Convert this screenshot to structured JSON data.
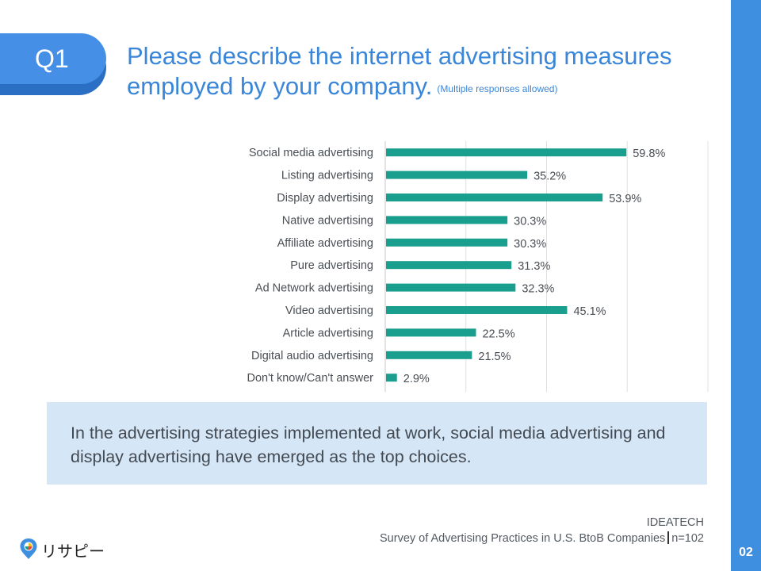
{
  "header": {
    "badge": "Q1",
    "title": "Please describe the internet advertising measures employed by your company.",
    "title_note": "(Multiple responses allowed)"
  },
  "chart_data": {
    "type": "bar",
    "orientation": "horizontal",
    "categories": [
      "Social media advertising",
      "Listing advertising",
      "Display advertising",
      "Native advertising",
      "Affiliate advertising",
      "Pure advertising",
      "Ad Network advertising",
      "Video advertising",
      "Article advertising",
      "Digital audio advertising",
      "Don't know/Can't answer"
    ],
    "values": [
      59.8,
      35.2,
      53.9,
      30.3,
      30.3,
      31.3,
      32.3,
      45.1,
      22.5,
      21.5,
      2.9
    ],
    "value_labels": [
      "59.8%",
      "35.2%",
      "53.9%",
      "30.3%",
      "30.3%",
      "31.3%",
      "32.3%",
      "45.1%",
      "22.5%",
      "21.5%",
      "2.9%"
    ],
    "xlim": [
      0,
      80
    ],
    "grid": true,
    "legend": "none",
    "bar_color": "#1a9e8e"
  },
  "callout": {
    "text": "In the advertising strategies implemented at work, social media advertising and display advertising have emerged as the top choices."
  },
  "source": {
    "org": "IDEATECH",
    "survey": "Survey of Advertising Practices in U.S. BtoB Companies",
    "sample": "n=102"
  },
  "logo": {
    "text": "リサピー",
    "icon": "pin-logo-icon"
  },
  "page_number": "02",
  "colors": {
    "accent": "#3f8fe0",
    "badge": "#4590e6",
    "title": "#3a86d8",
    "callout_bg": "#d5e6f7"
  }
}
